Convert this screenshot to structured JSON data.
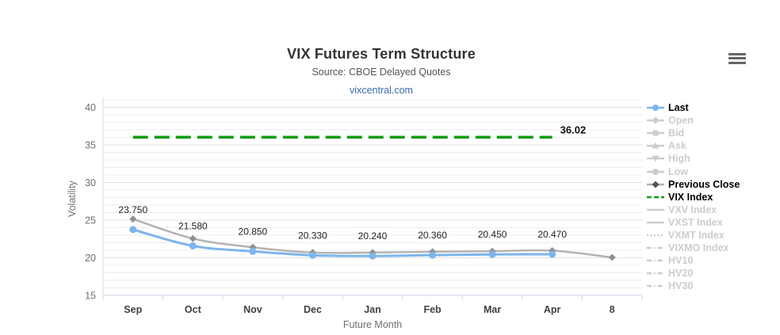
{
  "header": {
    "title": "VIX Futures Term Structure",
    "subtitle": "Source: CBOE Delayed Quotes",
    "link": "vixcentral.com"
  },
  "chart_data": {
    "type": "line",
    "title": "VIX Futures Term Structure",
    "subtitle": "Source: CBOE Delayed Quotes",
    "xlabel": "Future Month",
    "ylabel": "Volatility",
    "categories": [
      "Sep",
      "Oct",
      "Nov",
      "Dec",
      "Jan",
      "Feb",
      "Mar",
      "Apr",
      "8"
    ],
    "ylim": [
      15,
      41.5
    ],
    "y_ticks": [
      15,
      20,
      25,
      30,
      35,
      40
    ],
    "y_minor_step": 1,
    "grid": true,
    "legend_position": "right",
    "series": [
      {
        "name": "Last",
        "color": "#7cb5ec",
        "marker": "circle",
        "values": [
          23.75,
          21.58,
          20.85,
          20.33,
          20.24,
          20.36,
          20.45,
          20.47
        ],
        "point_labels": [
          "23.750",
          "21.580",
          "20.850",
          "20.330",
          "20.240",
          "20.360",
          "20.450",
          "20.470"
        ]
      },
      {
        "name": "Previous Close",
        "color": "#b3b3b3",
        "marker": "diamond",
        "marker_color": "#8f8f8f",
        "values": [
          25.15,
          22.55,
          21.4,
          20.7,
          20.7,
          20.8,
          20.87,
          20.95,
          20.05
        ]
      },
      {
        "name": "VIX Index",
        "color": "#0f9b0f",
        "style": "dashed-horizontal-line",
        "value": 36.02,
        "label": "36.02",
        "span_categories": [
          "Sep",
          "Apr"
        ]
      }
    ]
  },
  "legend": {
    "items": [
      {
        "label": "Last",
        "marker": "circle",
        "enabled": true,
        "line": "#7cb5ec",
        "mark": "#7cb5ec"
      },
      {
        "label": "Open",
        "marker": "diamond",
        "enabled": false
      },
      {
        "label": "Bid",
        "marker": "square",
        "enabled": false
      },
      {
        "label": "Ask",
        "marker": "triangle",
        "enabled": false
      },
      {
        "label": "High",
        "marker": "triangle-down",
        "enabled": false
      },
      {
        "label": "Low",
        "marker": "circle",
        "enabled": false
      },
      {
        "label": "Previous Close",
        "marker": "diamond",
        "enabled": true,
        "line": "#b0b0b0",
        "mark": "#555555"
      },
      {
        "label": "VIX Index",
        "marker": "dash",
        "enabled": true,
        "line": "#0f9b0f"
      },
      {
        "label": "VXV Index",
        "marker": "line",
        "enabled": false
      },
      {
        "label": "VXST Index",
        "marker": "line",
        "enabled": false
      },
      {
        "label": "VXMT Index",
        "marker": "dotted",
        "enabled": false
      },
      {
        "label": "VIXMO Index",
        "marker": "dashdot",
        "enabled": false
      },
      {
        "label": "HV10",
        "marker": "dashdot",
        "enabled": false
      },
      {
        "label": "HV20",
        "marker": "dashdot",
        "enabled": false
      },
      {
        "label": "HV30",
        "marker": "dashdot",
        "enabled": false
      }
    ]
  },
  "colors": {
    "accent_blue": "#7cb5ec",
    "green": "#0f9b0f",
    "gray_series": "#b3b3b3",
    "disabled_legend": "#cccccc",
    "title_text": "#333333",
    "axis_text": "#707070",
    "month_text": "#404040",
    "link": "#3b6dad",
    "grid_minor": "#ececec",
    "grid_major": "#e1e1e1",
    "axis_line": "#ccd6eb"
  }
}
